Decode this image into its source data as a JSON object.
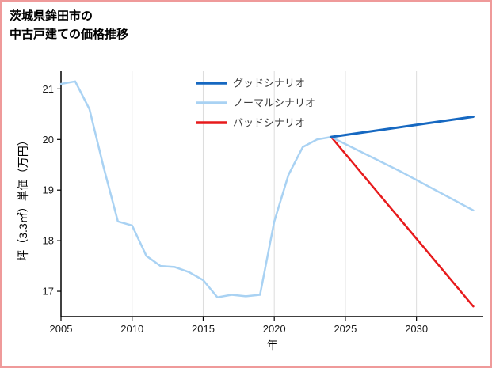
{
  "page": {
    "border_color": "#ef9a9a",
    "background_color": "#ffffff"
  },
  "chart_data": {
    "type": "line",
    "title": "茨城県鉾田市の\n中古戸建ての価格推移",
    "xlabel": "年",
    "ylabel": "坪（3.3㎡）単価（万円）",
    "xlim": [
      2005,
      2034.7
    ],
    "ylim": [
      16.5,
      21.35
    ],
    "xticks": [
      2005,
      2010,
      2015,
      2020,
      2025,
      2030
    ],
    "yticks": [
      17,
      18,
      19,
      20,
      21
    ],
    "grid": "vertical-only",
    "grid_color": "#dcdcdc",
    "axis_color": "#000000",
    "tick_label_color": "#1a1a1a",
    "legend_text_color": "#3d3d3d",
    "legend_position": "top-inside",
    "series": [
      {
        "id": "good-scenario",
        "name": "グッドシナリオ",
        "color": "#1668c1",
        "width": 3,
        "in_legend": true,
        "x": [
          2024,
          2034
        ],
        "y": [
          20.05,
          20.45
        ]
      },
      {
        "id": "normal-scenario",
        "name": "ノーマルシナリオ",
        "color": "#a9d2f3",
        "width": 2.5,
        "in_legend": true,
        "x": [
          2024,
          2029,
          2034
        ],
        "y": [
          20.05,
          19.35,
          18.6
        ]
      },
      {
        "id": "bad-scenario",
        "name": "バッドシナリオ",
        "color": "#e71a1c",
        "width": 2.5,
        "in_legend": true,
        "x": [
          2024,
          2034
        ],
        "y": [
          20.05,
          16.7
        ]
      },
      {
        "id": "history",
        "name": "",
        "color": "#a9d2f3",
        "width": 2.5,
        "in_legend": false,
        "x": [
          2005,
          2006,
          2007,
          2008,
          2009,
          2010,
          2011,
          2012,
          2013,
          2014,
          2015,
          2016,
          2017,
          2018,
          2019,
          2020,
          2021,
          2022,
          2023,
          2024
        ],
        "y": [
          21.1,
          21.15,
          20.6,
          19.45,
          18.38,
          18.3,
          17.7,
          17.5,
          17.48,
          17.38,
          17.22,
          16.88,
          16.93,
          16.9,
          16.93,
          18.38,
          19.3,
          19.85,
          20.0,
          20.05
        ]
      }
    ]
  }
}
